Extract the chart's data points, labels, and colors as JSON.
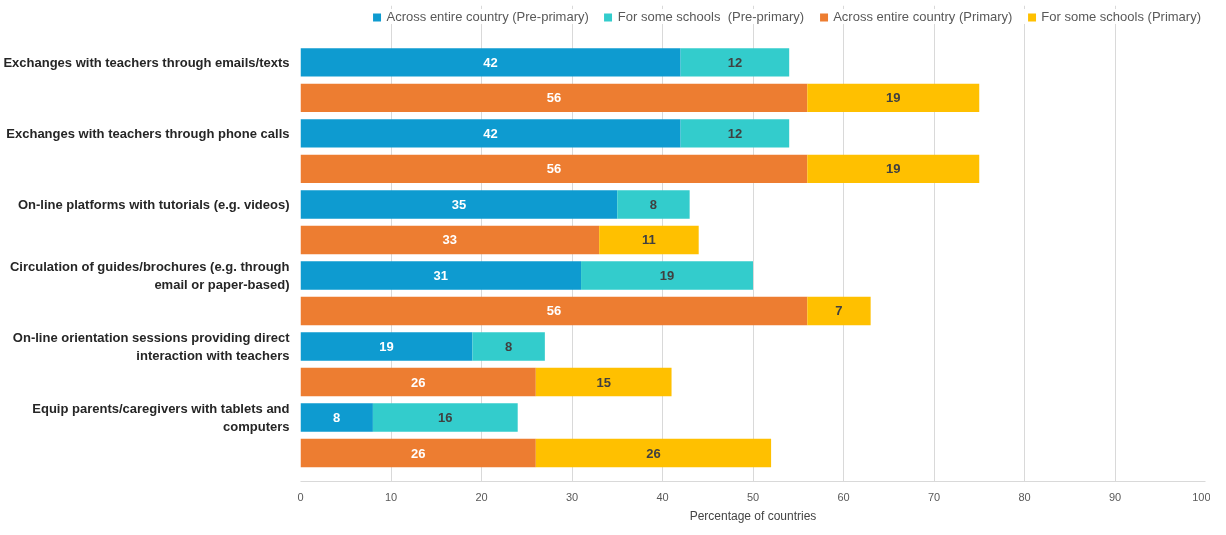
{
  "chart_data": {
    "type": "bar",
    "orientation": "horizontal",
    "stacked": true,
    "categories": [
      "Exchanges with teachers through emails/texts",
      null,
      "Exchanges with teachers through phone calls",
      null,
      "On-line platforms with tutorials (e.g. videos)",
      null,
      "Circulation of guides/brochures (e.g. through email or paper-based)",
      null,
      "On-line orientation sessions providing direct interaction with teachers",
      null,
      "Equip parents/caregivers with tablets and computers",
      null
    ],
    "series": [
      {
        "name": "Across entire country (Pre-primary)",
        "color": "#0e9bd0",
        "values": [
          42,
          null,
          42,
          null,
          35,
          null,
          31,
          null,
          19,
          null,
          8,
          null
        ]
      },
      {
        "name": "For some schools  (Pre-primary)",
        "color": "#33cccc",
        "values": [
          12,
          null,
          12,
          null,
          8,
          null,
          19,
          null,
          8,
          null,
          16,
          null
        ]
      },
      {
        "name": "Across entire country (Primary)",
        "color": "#ed7d31",
        "values": [
          null,
          56,
          null,
          56,
          null,
          33,
          null,
          56,
          null,
          26,
          null,
          26
        ]
      },
      {
        "name": "For some schools (Primary)",
        "color": "#ffc000",
        "values": [
          null,
          19,
          null,
          19,
          null,
          11,
          null,
          7,
          null,
          15,
          null,
          26
        ]
      }
    ],
    "xlim": [
      0,
      100
    ],
    "xticks": [
      0,
      10,
      20,
      30,
      40,
      50,
      60,
      70,
      80,
      90,
      100
    ],
    "xlabel": "Percentage of countries",
    "grid": "x",
    "legend": "top",
    "data_labels": true
  }
}
